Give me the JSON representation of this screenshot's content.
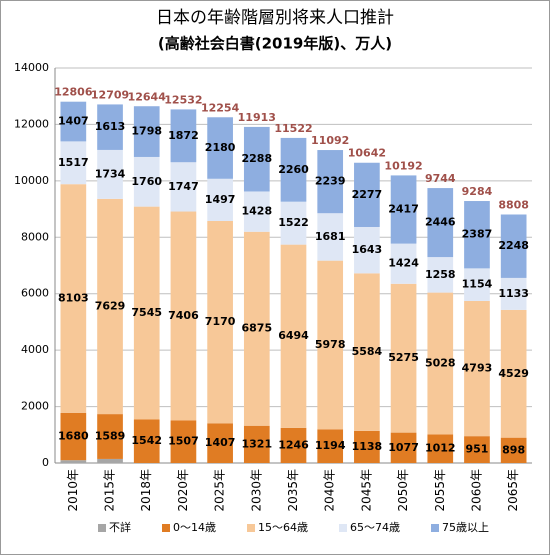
{
  "chart_data": {
    "type": "stacked_bar",
    "title": "日本の年齢階層別将来人口推計",
    "subtitle": "(高齢社会白書(2019年版)、万人)",
    "categories": [
      "2010年",
      "2015年",
      "2018年",
      "2020年",
      "2025年",
      "2030年",
      "2035年",
      "2040年",
      "2045年",
      "2050年",
      "2055年",
      "2060年",
      "2065年"
    ],
    "series": [
      {
        "name": "不詳",
        "color": "#a6a6a6",
        "data_labels": false,
        "values": [
          99,
          144,
          0,
          0,
          0,
          0,
          0,
          0,
          0,
          0,
          0,
          0,
          0
        ]
      },
      {
        "name": "0～14歳",
        "color": "#e07c23",
        "data_labels": true,
        "values": [
          1680,
          1589,
          1542,
          1507,
          1407,
          1321,
          1246,
          1194,
          1138,
          1077,
          1012,
          951,
          898
        ]
      },
      {
        "name": "15～64歳",
        "color": "#f7c898",
        "data_labels": true,
        "values": [
          8103,
          7629,
          7545,
          7406,
          7170,
          6875,
          6494,
          5978,
          5584,
          5275,
          5028,
          4793,
          4529
        ]
      },
      {
        "name": "65～74歳",
        "color": "#dfe7f5",
        "data_labels": true,
        "values": [
          1517,
          1734,
          1760,
          1747,
          1497,
          1428,
          1522,
          1681,
          1643,
          1424,
          1258,
          1154,
          1133
        ]
      },
      {
        "name": "75歳以上",
        "color": "#8eaee0",
        "data_labels": true,
        "values": [
          1407,
          1613,
          1798,
          1872,
          2180,
          2288,
          2260,
          2239,
          2277,
          2417,
          2446,
          2387,
          2248
        ]
      }
    ],
    "totals": [
      12806,
      12709,
      12644,
      12532,
      12254,
      11913,
      11522,
      11092,
      10642,
      10192,
      9744,
      9284,
      8808
    ],
    "totals_color": "#a0504a",
    "ylim": [
      0,
      14000
    ],
    "yticks": [
      0,
      2000,
      4000,
      6000,
      8000,
      10000,
      12000,
      14000
    ],
    "grid": true,
    "legend": "bottom"
  }
}
